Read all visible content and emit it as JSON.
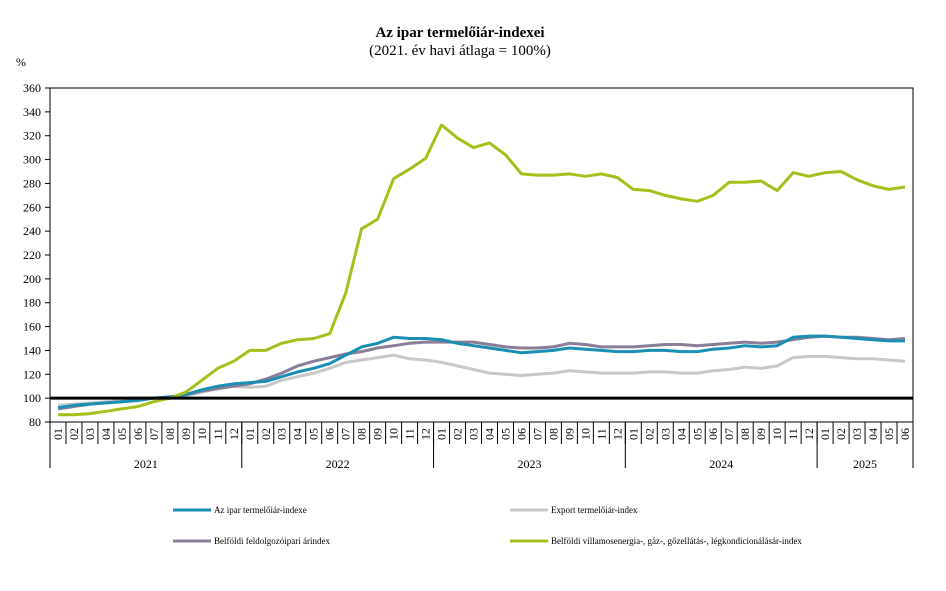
{
  "chart_data": {
    "type": "line",
    "title": "Az ipar termelőiár-indexei",
    "subtitle": "(2021. év havi átlaga = 100%)",
    "ylabel": "%",
    "ylim": [
      80,
      360
    ],
    "yticks": [
      80,
      100,
      120,
      140,
      160,
      180,
      200,
      220,
      240,
      260,
      280,
      300,
      320,
      340,
      360
    ],
    "grid": false,
    "legend_position": "bottom",
    "reference_line": 100,
    "years": [
      "2021",
      "2022",
      "2023",
      "2024",
      "2025"
    ],
    "months": [
      "01",
      "02",
      "03",
      "04",
      "05",
      "06",
      "07",
      "08",
      "09",
      "10",
      "11",
      "12",
      "01",
      "02",
      "03",
      "04",
      "05",
      "06",
      "07",
      "08",
      "09",
      "10",
      "11",
      "12",
      "01",
      "02",
      "03",
      "04",
      "05",
      "06",
      "07",
      "08",
      "09",
      "10",
      "11",
      "12",
      "01",
      "02",
      "03",
      "04",
      "05",
      "06",
      "07",
      "08",
      "09",
      "10",
      "11",
      "12",
      "01",
      "02",
      "03",
      "04",
      "05",
      "06"
    ],
    "series": [
      {
        "name": "Az ipar termelőiár-indexe",
        "color": "#1a8fb3",
        "values": [
          92,
          94,
          95,
          96,
          97,
          98,
          100,
          101,
          103,
          107,
          110,
          112,
          113,
          114,
          118,
          122,
          125,
          129,
          136,
          143,
          146,
          151,
          150,
          150,
          149,
          146,
          144,
          142,
          140,
          138,
          139,
          140,
          142,
          141,
          140,
          139,
          139,
          140,
          140,
          139,
          139,
          141,
          142,
          144,
          143,
          144,
          151,
          152,
          152,
          151,
          150,
          149,
          148,
          148
        ]
      },
      {
        "name": "Export termelőiár-index",
        "color": "#c8c8c8",
        "values": [
          94,
          95,
          96,
          97,
          98,
          99,
          100,
          101,
          102,
          105,
          108,
          110,
          109,
          110,
          115,
          118,
          121,
          125,
          130,
          132,
          134,
          136,
          133,
          132,
          130,
          127,
          124,
          121,
          120,
          119,
          120,
          121,
          123,
          122,
          121,
          121,
          121,
          122,
          122,
          121,
          121,
          123,
          124,
          126,
          125,
          127,
          134,
          135,
          135,
          134,
          133,
          133,
          132,
          131
        ]
      },
      {
        "name": "Belföldi feldolgozóipari árindex",
        "color": "#8a7d98",
        "values": [
          91,
          93,
          95,
          96,
          97,
          99,
          100,
          101,
          103,
          106,
          108,
          110,
          112,
          116,
          121,
          127,
          131,
          134,
          137,
          139,
          142,
          144,
          146,
          147,
          147,
          147,
          147,
          145,
          143,
          142,
          142,
          143,
          146,
          145,
          143,
          143,
          143,
          144,
          145,
          145,
          144,
          145,
          146,
          147,
          146,
          147,
          149,
          151,
          152,
          151,
          151,
          150,
          149,
          150
        ]
      },
      {
        "name": "Belföldi villamosenergia-, gáz-, gőzellátás-, légkondicionálásár-index",
        "color": "#a3c11b",
        "values": [
          86,
          86,
          87,
          89,
          91,
          93,
          97,
          100,
          105,
          115,
          125,
          131,
          140,
          140,
          146,
          149,
          150,
          154,
          188,
          242,
          250,
          284,
          292,
          301,
          329,
          318,
          310,
          314,
          304,
          288,
          287,
          287,
          288,
          286,
          288,
          285,
          275,
          274,
          270,
          267,
          265,
          270,
          281,
          281,
          282,
          274,
          289,
          286,
          289,
          290,
          283,
          278,
          275,
          277
        ]
      }
    ]
  }
}
